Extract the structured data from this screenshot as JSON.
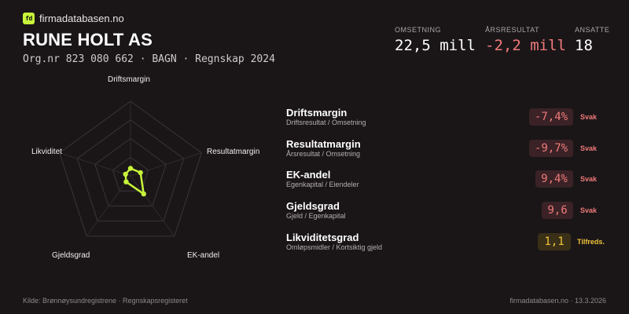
{
  "brand": {
    "logo_text": "fd",
    "site_name": "firmadatabasen.no",
    "accent": "#c8f53a"
  },
  "company": {
    "name": "RUNE HOLT AS",
    "subline": "Org.nr 823 080 662 · BAGN · Regnskap 2024"
  },
  "kpis": [
    {
      "label": "OMSETNING",
      "value": "22,5 mill"
    },
    {
      "label": "ÅRSRESULTAT",
      "value": "-2,2 mill"
    },
    {
      "label": "ANSATTE",
      "value": "18"
    }
  ],
  "radar": {
    "axes": [
      "Driftsmargin",
      "Resultatmargin",
      "EK-andel",
      "Gjeldsgrad",
      "Likviditet"
    ],
    "scores": [
      0.1,
      0.14,
      0.3,
      0.1,
      0.07
    ],
    "color": "#c8f53a"
  },
  "metrics": [
    {
      "title": "Driftsmargin",
      "subtitle": "Driftsresultat / Omsetning",
      "value": "-7,4%",
      "status": "Svak",
      "tone": "red"
    },
    {
      "title": "Resultatmargin",
      "subtitle": "Årsresultat / Omsetning",
      "value": "-9,7%",
      "status": "Svak",
      "tone": "red"
    },
    {
      "title": "EK-andel",
      "subtitle": "Egenkapital / Eiendeler",
      "value": "9,4%",
      "status": "Svak",
      "tone": "red"
    },
    {
      "title": "Gjeldsgrad",
      "subtitle": "Gjeld / Egenkapital",
      "value": "9,6",
      "status": "Svak",
      "tone": "red"
    },
    {
      "title": "Likviditetsgrad",
      "subtitle": "Omløpsmidler / Kortsiktig gjeld",
      "value": "1,1",
      "status": "Tilfreds.",
      "tone": "yellow"
    }
  ],
  "footer": {
    "source": "Kilde: Brønnøysundregistrene · Regnskapsregisteret",
    "site_date": "firmadatabasen.no · 13.3.2026"
  }
}
